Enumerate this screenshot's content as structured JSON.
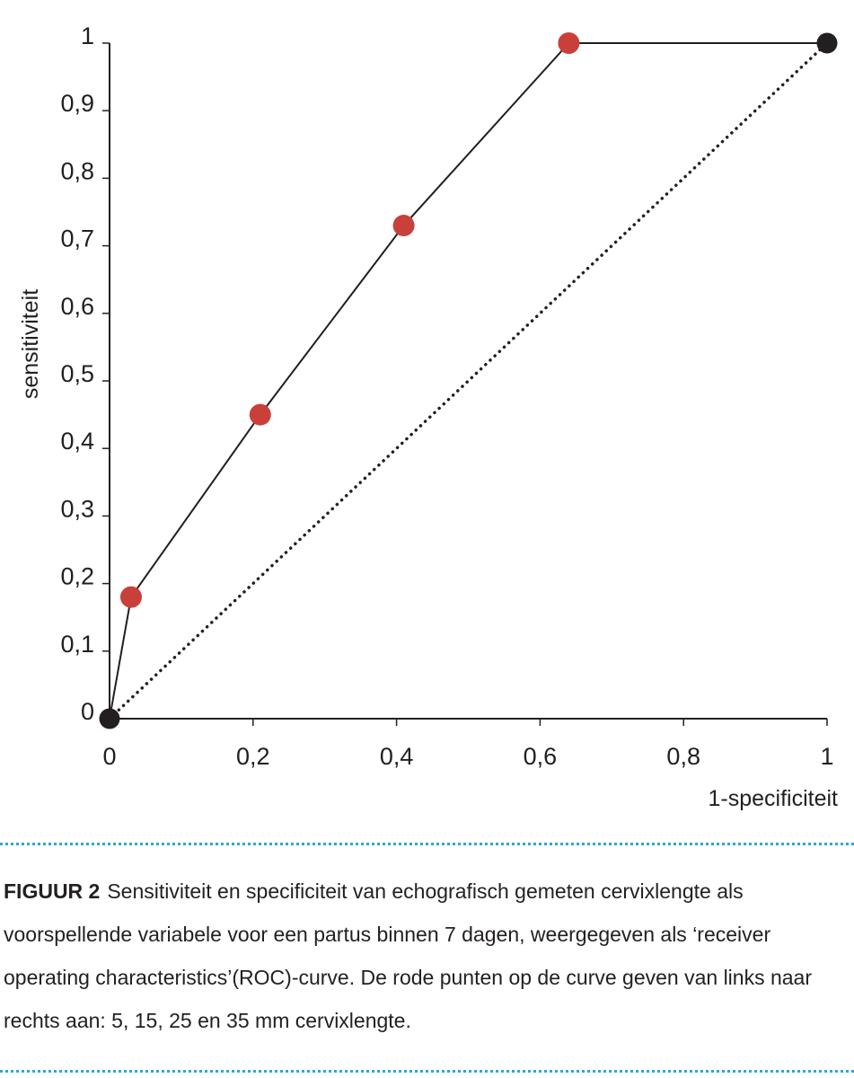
{
  "chart_data": {
    "type": "line",
    "xlabel": "1-specificiteit",
    "ylabel": "sensitiviteit",
    "xlim": [
      0,
      1
    ],
    "ylim": [
      0,
      1
    ],
    "grid": false,
    "x_ticks": [
      0,
      0.2,
      0.4,
      0.6,
      0.8,
      1
    ],
    "x_tick_labels": [
      "0",
      "0,2",
      "0,4",
      "0,6",
      "0,8",
      "1"
    ],
    "y_ticks": [
      0,
      0.1,
      0.2,
      0.3,
      0.4,
      0.5,
      0.6,
      0.7,
      0.8,
      0.9,
      1
    ],
    "y_tick_labels": [
      "0",
      "0,1",
      "0,2",
      "0,3",
      "0,4",
      "0,5",
      "0,6",
      "0,7",
      "0,8",
      "0,9",
      "1"
    ],
    "series": [
      {
        "name": "ROC-curve",
        "line_color": "#231f20",
        "x": [
          0,
          0.03,
          0.21,
          0.41,
          0.64,
          1
        ],
        "y": [
          0,
          0.18,
          0.45,
          0.73,
          1,
          1
        ],
        "marker_colors": [
          "#231f20",
          "#c9403b",
          "#c9403b",
          "#c9403b",
          "#c9403b",
          "#231f20"
        ]
      },
      {
        "name": "reference-diagonal",
        "style": "dotted",
        "line_color": "#231f20",
        "x": [
          0,
          1
        ],
        "y": [
          0,
          1
        ]
      }
    ]
  },
  "caption": {
    "label": "FIGUUR 2",
    "text": "Sensitiviteit en specificiteit van echografisch gemeten cervixlengte als voorspellende variabele voor een partus binnen 7 dagen, weergegeven als ‘receiver operating characteristics’(ROC)-curve. De rode punten op de curve geven van links naar rechts aan: 5, 15, 25 en 35 mm cervixlengte."
  },
  "colors": {
    "divider": "#2aa7dc",
    "point_red": "#c9403b",
    "ink": "#231f20"
  }
}
